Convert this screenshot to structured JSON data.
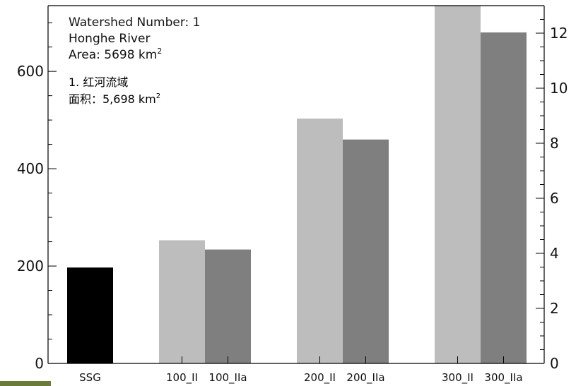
{
  "annotation": {
    "line1": "Watershed Number: 1",
    "line2": "Honghe River",
    "line3_prefix": "Area: 5698 km",
    "line3_sup": "2",
    "cn_line1": "1. 红河流域",
    "cn_line2_prefix": "面积：5,698 km",
    "cn_line2_sup": "2"
  },
  "chart_data": {
    "type": "bar",
    "categories": [
      "SSG",
      "100_II",
      "100_IIa",
      "200_II",
      "200_IIa",
      "300_II",
      "300_IIa"
    ],
    "values": [
      197,
      253,
      234,
      503,
      460,
      735,
      680
    ],
    "colors": [
      "#000000",
      "#bdbdbd",
      "#7f7f7f",
      "#bdbdbd",
      "#7f7f7f",
      "#bdbdbd",
      "#7f7f7f"
    ],
    "ylim": [
      0,
      735
    ],
    "y_ticks": [
      0,
      200,
      400,
      600
    ],
    "y_tick_labels": [
      "0",
      "200",
      "400",
      "600"
    ],
    "y2lim": [
      0,
      13
    ],
    "y2_ticks": [
      0,
      2,
      4,
      6,
      8,
      10,
      12
    ],
    "y2_tick_labels": [
      "0",
      "2",
      "4",
      "6",
      "8",
      "10",
      "12"
    ],
    "grid": false
  },
  "colors": {
    "background": "#ffffff",
    "axis": "#000000",
    "light_bar": "#bdbdbd",
    "dark_bar": "#7f7f7f",
    "ssg_bar": "#000000"
  }
}
